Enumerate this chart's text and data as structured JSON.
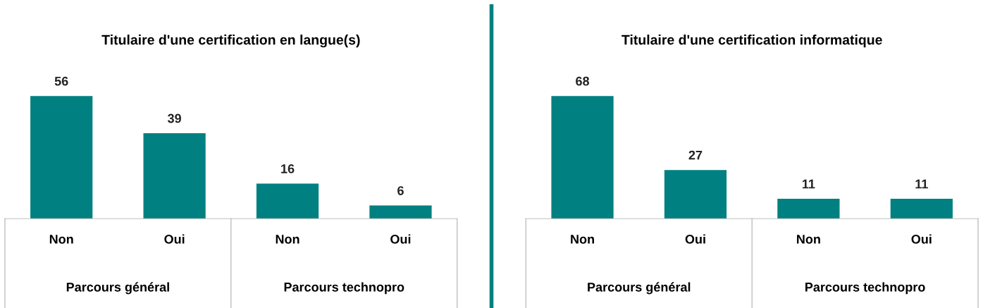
{
  "chart_data": [
    {
      "type": "bar",
      "title": "Titulaire d'une certification en langue(s)",
      "categories": [
        "Non",
        "Oui",
        "Non",
        "Oui"
      ],
      "values": [
        56,
        39,
        16,
        6
      ],
      "color": "#008080",
      "data_labels": true,
      "tick_labels": "x",
      "grid": false,
      "legend": false,
      "annotations": [
        "Parcours général",
        "Parcours technopro"
      ]
    },
    {
      "type": "bar",
      "title": "Titulaire d'une certification informatique",
      "categories": [
        "Non",
        "Oui",
        "Non",
        "Oui"
      ],
      "values": [
        68,
        27,
        11,
        11
      ],
      "color": "#008080",
      "data_labels": true,
      "tick_labels": "x",
      "grid": false,
      "legend": false,
      "annotations": [
        "Parcours général",
        "Parcours technopro"
      ]
    }
  ]
}
